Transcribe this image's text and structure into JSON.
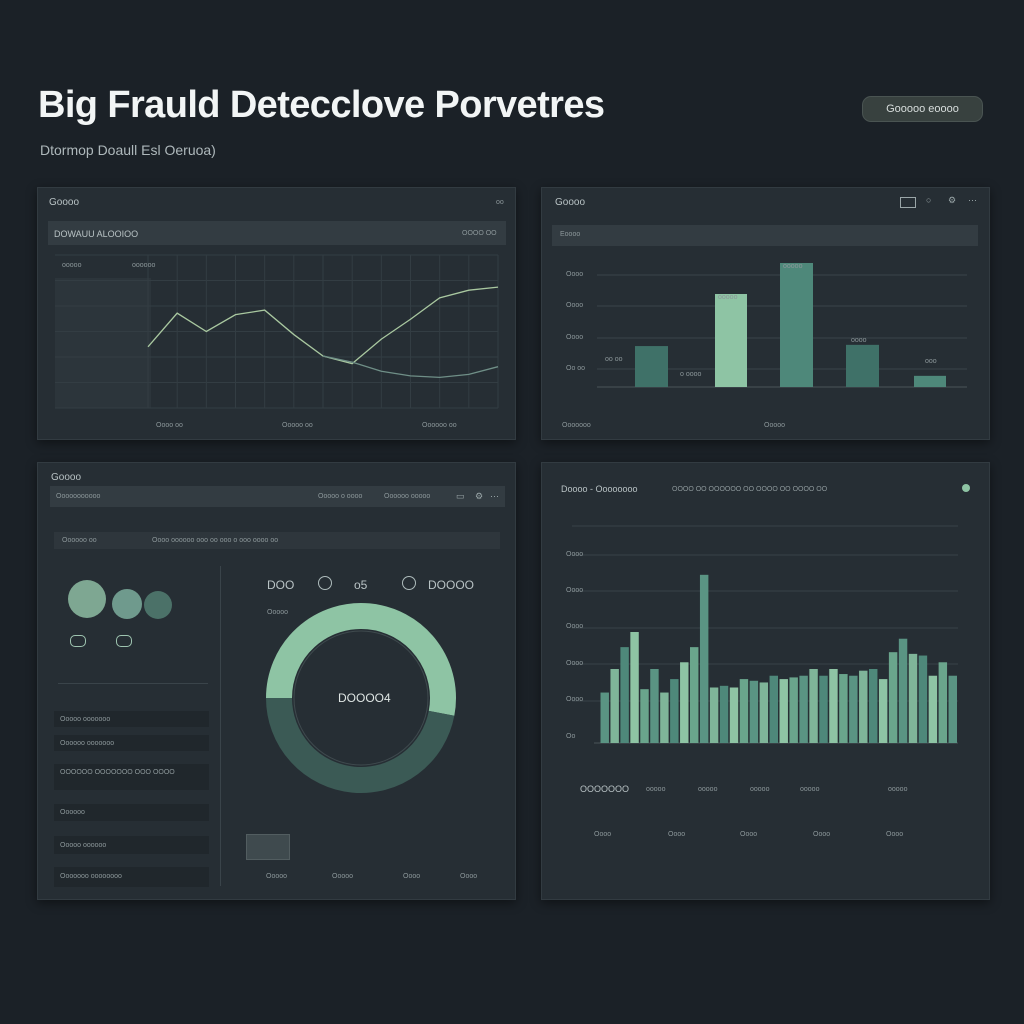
{
  "header": {
    "title": "Big Frauld Detecclove Porvetres",
    "subtitle": "Dtormop Doaull Esl Oeruoa)",
    "button_label": "Gooooo eoooo"
  },
  "panel1": {
    "title": "Goooo",
    "corner": "oo",
    "toolbar_label": "DOWAUU ALOOIOO",
    "toolbar_right": "OOOO OO",
    "legend_a": "ooooo",
    "legend_b": "oooooo",
    "footer": [
      "Oooo oo",
      "Ooooo oo",
      "Oooooo oo"
    ]
  },
  "panel2": {
    "title": "Goooo",
    "toolbar_label": "Eoooo",
    "y_labels": [
      "Oooo",
      "Oooo",
      "Oooo",
      "Oo oo"
    ],
    "bar_labels": [
      "oo oo",
      "ooooo",
      "ooooo",
      "oooo",
      "ooo"
    ],
    "note": "o oooo",
    "footer": [
      "Ooooooo",
      "Ooooo"
    ]
  },
  "panel3": {
    "title": "Goooo",
    "toolbar_label": "Ooooooooooo",
    "toolbar_right": [
      "Ooooo o oooo",
      "Oooooo ooooo"
    ],
    "filter_label": "Oooooo oo",
    "filter_items": "Oooo  oooooo ooo oo  ooo  o ooo oooo oo",
    "stat_a": "DOO",
    "stat_b": "o5",
    "stat_c": "DOOOO",
    "stat_note": "Ooooo",
    "donut_label": "DOOOO4",
    "list_items": [
      "Ooooo ooooooo",
      "Oooooo ooooooo",
      "OOOOOO OOOOOOO OOO OOOO",
      "Oooooo",
      "Ooooo oooooo",
      "Ooooooo oooooooo"
    ],
    "footer": [
      "Ooooo",
      "Ooooo",
      "Oooo",
      "Oooo"
    ]
  },
  "panel4": {
    "title": "Doooo - Oooooooo",
    "header_items": "OOOO OO  OOOOOO OO  OOOO OO  OOOO OO",
    "y_labels": [
      "Oooo",
      "Oooo",
      "Oooo",
      "Oooo",
      "Oooo",
      "Oo"
    ],
    "legend": [
      "OOOOOOO",
      "ooooo",
      "ooooo",
      "ooooo",
      "ooooo",
      "ooooo"
    ],
    "footer": [
      "Oooo",
      "Oooo",
      "Oooo",
      "Oooo",
      "Oooo"
    ]
  },
  "colors": {
    "accent": "#8ec4a4",
    "accent_dark": "#3f7168",
    "panel": "#262e34",
    "background": "#1b2127"
  },
  "chart_data": [
    {
      "type": "line",
      "x": [
        0,
        1,
        2,
        3,
        4,
        5,
        6,
        7,
        8,
        9,
        10,
        11,
        12
      ],
      "series": [
        {
          "values": [
            40,
            62,
            50,
            61,
            64,
            48,
            34,
            29,
            45,
            58,
            72,
            77,
            79
          ]
        },
        {
          "values": [
            null,
            null,
            null,
            null,
            null,
            null,
            34,
            30,
            24,
            21,
            20,
            22,
            27
          ]
        }
      ],
      "ylim": [
        0,
        100
      ]
    },
    {
      "type": "bar",
      "values": [
        33,
        75,
        100,
        34,
        9
      ],
      "ylim": [
        0,
        100
      ]
    },
    {
      "type": "pie",
      "values": [
        53,
        47
      ]
    },
    {
      "type": "bar",
      "values": [
        30,
        44,
        57,
        66,
        32,
        44,
        30,
        38,
        48,
        57,
        100,
        33,
        34,
        33,
        38,
        37,
        36,
        40,
        38,
        39,
        40,
        44,
        40,
        44,
        41,
        40,
        43,
        44,
        38,
        54,
        62,
        53,
        52,
        40,
        48,
        40
      ],
      "ylim": [
        0,
        110
      ]
    }
  ]
}
